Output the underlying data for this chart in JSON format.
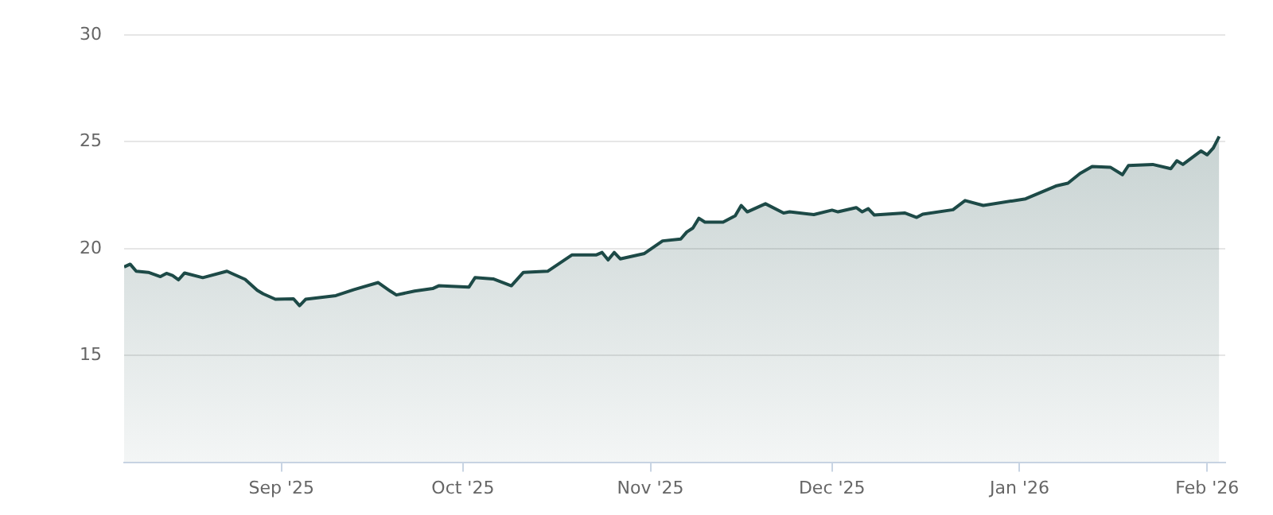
{
  "chart_data": {
    "type": "area",
    "x": [
      "2025-08-06",
      "2025-08-07",
      "2025-08-08",
      "2025-08-10",
      "2025-08-12",
      "2025-08-13",
      "2025-08-14",
      "2025-08-15",
      "2025-08-16",
      "2025-08-19",
      "2025-08-23",
      "2025-08-24",
      "2025-08-26",
      "2025-08-28",
      "2025-08-29",
      "2025-08-31",
      "2025-09-03",
      "2025-09-04",
      "2025-09-05",
      "2025-09-10",
      "2025-09-13",
      "2025-09-17",
      "2025-09-19",
      "2025-09-20",
      "2025-09-23",
      "2025-09-26",
      "2025-09-27",
      "2025-10-02",
      "2025-10-03",
      "2025-10-06",
      "2025-10-09",
      "2025-10-11",
      "2025-10-15",
      "2025-10-19",
      "2025-10-23",
      "2025-10-24",
      "2025-10-25",
      "2025-10-26",
      "2025-10-27",
      "2025-10-31",
      "2025-11-03",
      "2025-11-06",
      "2025-11-07",
      "2025-11-08",
      "2025-11-09",
      "2025-11-10",
      "2025-11-13",
      "2025-11-15",
      "2025-11-16",
      "2025-11-17",
      "2025-11-20",
      "2025-11-23",
      "2025-11-24",
      "2025-11-28",
      "2025-12-01",
      "2025-12-02",
      "2025-12-05",
      "2025-12-06",
      "2025-12-07",
      "2025-12-08",
      "2025-12-13",
      "2025-12-15",
      "2025-12-16",
      "2025-12-21",
      "2025-12-23",
      "2025-12-26",
      "2026-01-02",
      "2026-01-07",
      "2026-01-09",
      "2026-01-11",
      "2026-01-13",
      "2026-01-16",
      "2026-01-18",
      "2026-01-19",
      "2026-01-23",
      "2026-01-26",
      "2026-01-27",
      "2026-01-28",
      "2026-01-31",
      "2026-02-01",
      "2026-02-02",
      "2026-02-03"
    ],
    "series": [
      {
        "color": "#1d4a47",
        "values": [
          19.14,
          19.27,
          18.94,
          18.89,
          18.69,
          18.84,
          18.74,
          18.54,
          18.86,
          18.64,
          18.94,
          18.81,
          18.56,
          18.05,
          17.88,
          17.63,
          17.65,
          17.33,
          17.63,
          17.8,
          18.08,
          18.41,
          18.01,
          17.83,
          18.01,
          18.13,
          18.26,
          18.2,
          18.64,
          18.58,
          18.26,
          18.89,
          18.94,
          19.7,
          19.7,
          19.82,
          19.47,
          19.82,
          19.52,
          19.77,
          20.36,
          20.45,
          20.78,
          20.96,
          21.42,
          21.24,
          21.24,
          21.54,
          22.02,
          21.72,
          22.1,
          21.67,
          21.72,
          21.59,
          21.8,
          21.72,
          21.92,
          21.72,
          21.87,
          21.57,
          21.67,
          21.46,
          21.61,
          21.82,
          22.25,
          22.02,
          22.33,
          22.93,
          23.06,
          23.52,
          23.84,
          23.81,
          23.46,
          23.89,
          23.94,
          23.74,
          24.11,
          23.94,
          24.57,
          24.39,
          24.7,
          25.25
        ]
      }
    ],
    "xlim": [
      "2025-08-06",
      "2026-02-04"
    ],
    "xticks": [
      {
        "value": "2025-09-01",
        "label": "Sep '25"
      },
      {
        "value": "2025-10-01",
        "label": "Oct '25"
      },
      {
        "value": "2025-11-01",
        "label": "Nov '25"
      },
      {
        "value": "2025-12-01",
        "label": "Dec '25"
      },
      {
        "value": "2026-01-01",
        "label": "Jan '26"
      },
      {
        "value": "2026-02-01",
        "label": "Feb '26"
      }
    ],
    "ylim": [
      10,
      30
    ],
    "yticks": [
      15,
      20,
      25,
      30
    ],
    "grid": "y",
    "marker": "none"
  }
}
